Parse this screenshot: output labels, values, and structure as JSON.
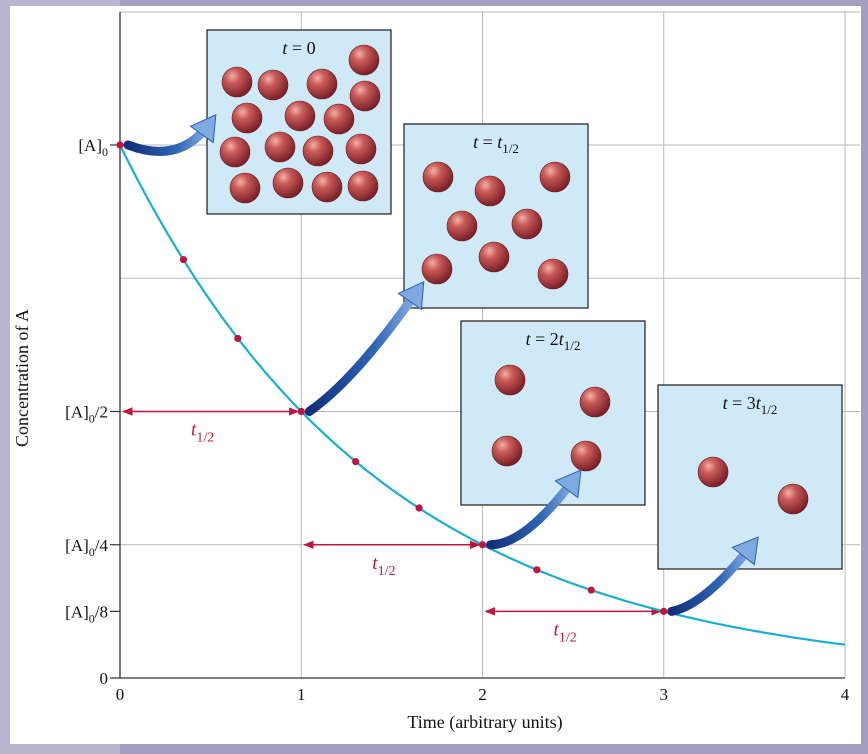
{
  "chart_data": {
    "type": "line",
    "title": "",
    "xlabel": "Time (arbitrary units)",
    "ylabel": "Concentration of A",
    "xlim": [
      0,
      4
    ],
    "ylim": [
      0,
      1.0
    ],
    "grid": true,
    "x_ticks": [
      "0",
      "1",
      "2",
      "3",
      "4"
    ],
    "y_ticks": [
      {
        "value": 1.0,
        "base": "[A]",
        "sub": "0",
        "suffix": ""
      },
      {
        "value": 0.5,
        "base": "[A]",
        "sub": "0",
        "suffix": "/2"
      },
      {
        "value": 0.25,
        "base": "[A]",
        "sub": "0",
        "suffix": "/4"
      },
      {
        "value": 0.125,
        "base": "[A]",
        "sub": "0",
        "suffix": "/8"
      },
      {
        "value": 0,
        "base": "0",
        "sub": "",
        "suffix": ""
      }
    ],
    "series": [
      {
        "curve": "first-order decay, C = [A]0 * 0.5^t",
        "x": [
          0,
          0.5,
          1,
          1.5,
          2,
          2.5,
          3,
          3.5,
          4
        ],
        "y": [
          1.0,
          0.707,
          0.5,
          0.354,
          0.25,
          0.177,
          0.125,
          0.088,
          0.0625
        ]
      }
    ],
    "markers": {
      "x": [
        0,
        0.35,
        0.65,
        1,
        1.3,
        1.65,
        2,
        2.3,
        2.6,
        3
      ],
      "y": [
        1.0,
        0.785,
        0.637,
        0.5,
        0.406,
        0.319,
        0.25,
        0.203,
        0.165,
        0.125
      ]
    },
    "half_life_intervals": [
      {
        "from": 0,
        "to": 1,
        "y": 0.5,
        "label": "t",
        "sub": "1/2"
      },
      {
        "from": 1,
        "to": 2,
        "y": 0.25,
        "label": "t",
        "sub": "1/2"
      },
      {
        "from": 2,
        "to": 3,
        "y": 0.125,
        "label": "t",
        "sub": "1/2"
      }
    ],
    "snapshots": [
      {
        "label_pre": "t = ",
        "label_var": "",
        "label_sub": "",
        "text_main": "0",
        "molecules": 16
      },
      {
        "label_pre": "t = t",
        "label_var": "",
        "label_sub": "1/2",
        "text_main": "",
        "molecules": 8
      },
      {
        "label_pre": "t = 2t",
        "label_var": "",
        "label_sub": "1/2",
        "text_main": "",
        "molecules": 4
      },
      {
        "label_pre": "t = 3t",
        "label_var": "",
        "label_sub": "1/2",
        "text_main": "",
        "molecules": 2
      }
    ],
    "colors": {
      "curve": "#1aaed0",
      "marker": "#c0143c",
      "grid": "#b9b9b9",
      "box_fill": "#cfe9f7",
      "molecule": "#b5474c",
      "arrow": "#2f5fa8",
      "frame": "#9f9ab9"
    }
  }
}
